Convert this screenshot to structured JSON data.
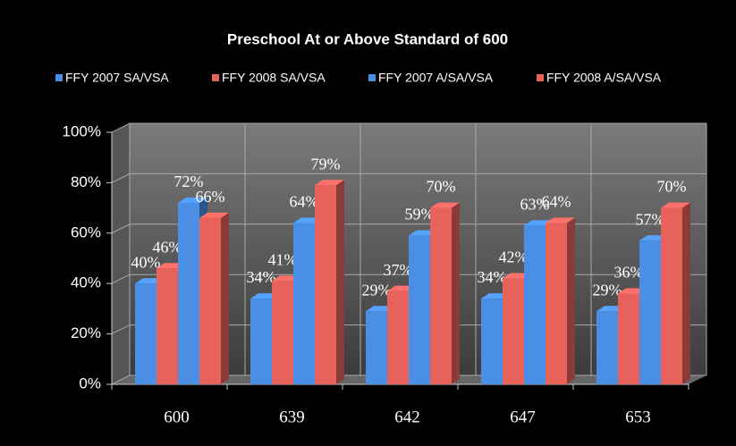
{
  "chart_data": {
    "type": "bar",
    "title": "Preschool At or Above Standard of 600",
    "categories": [
      "600",
      "639",
      "642",
      "647",
      "653"
    ],
    "series": [
      {
        "name": "FFY 2007 SA/VSA",
        "color": "#4a8ee6",
        "values": [
          40,
          34,
          29,
          34,
          29
        ],
        "value_labels": [
          "40%",
          "34%",
          "29%",
          "34%",
          "29%"
        ]
      },
      {
        "name": "FFY 2008 SA/VSA",
        "color": "#e8625c",
        "values": [
          46,
          41,
          37,
          42,
          36
        ],
        "value_labels": [
          "46%",
          "41%",
          "37%",
          "42%",
          "36%"
        ]
      },
      {
        "name": "FFY 2007 A/SA/VSA",
        "color": "#4a8ee6",
        "values": [
          72,
          64,
          59,
          63,
          57
        ],
        "value_labels": [
          "72%",
          "64%",
          "59%",
          "63%",
          "57%"
        ]
      },
      {
        "name": "FFY 2008 A/SA/VSA",
        "color": "#e8625c",
        "values": [
          66,
          79,
          70,
          64,
          70
        ],
        "value_labels": [
          "66%",
          "79%",
          "70%",
          "64%",
          "70%"
        ]
      }
    ],
    "ylim": [
      0,
      100
    ],
    "yticks": [
      {
        "value": 0,
        "label": "0%"
      },
      {
        "value": 20,
        "label": "20%"
      },
      {
        "value": 40,
        "label": "40%"
      },
      {
        "value": 60,
        "label": "60%"
      },
      {
        "value": 80,
        "label": "80%"
      },
      {
        "value": 100,
        "label": "100%"
      }
    ],
    "grid": true,
    "legend": "top"
  }
}
